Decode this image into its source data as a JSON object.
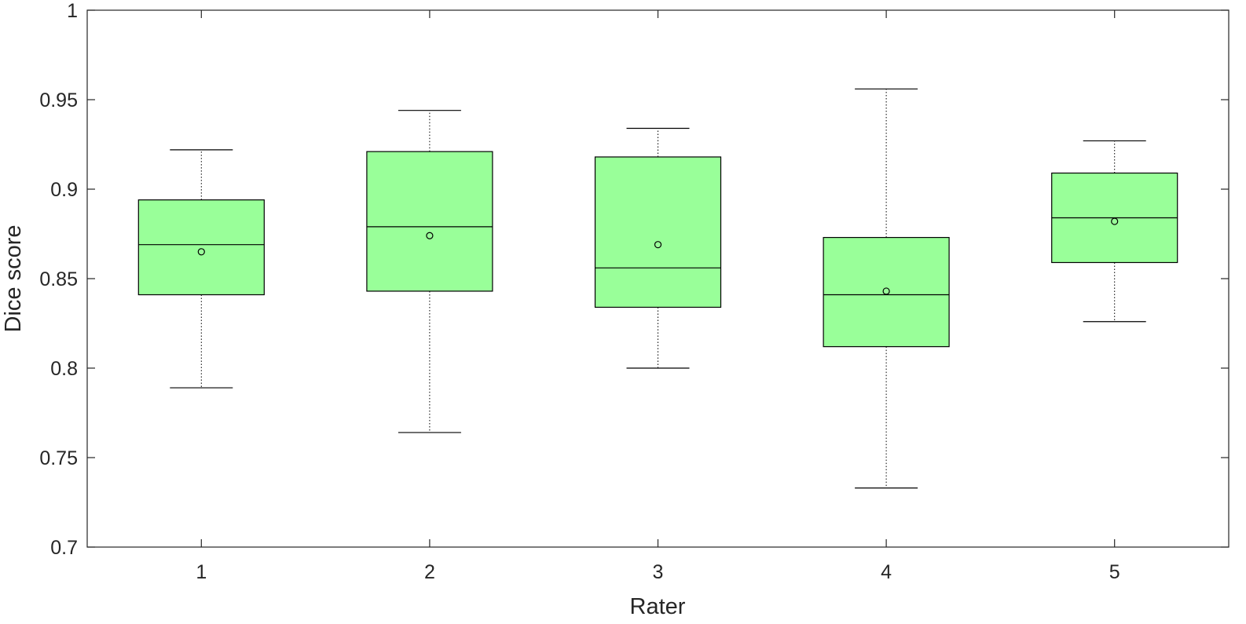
{
  "chart_data": {
    "type": "box",
    "xlabel": "Rater",
    "ylabel": "Dice score",
    "ylim": [
      0.7,
      1
    ],
    "yticks": [
      "0.7",
      "0.75",
      "0.8",
      "0.85",
      "0.9",
      "0.95",
      "1"
    ],
    "categories": [
      "1",
      "2",
      "3",
      "4",
      "5"
    ],
    "box_color": "#99ff99",
    "grid": false,
    "legend": "none",
    "boxes": [
      {
        "category": "1",
        "whisker_low": 0.789,
        "q1": 0.841,
        "median": 0.869,
        "q3": 0.894,
        "whisker_high": 0.922,
        "mean": 0.865
      },
      {
        "category": "2",
        "whisker_low": 0.764,
        "q1": 0.843,
        "median": 0.879,
        "q3": 0.921,
        "whisker_high": 0.944,
        "mean": 0.874
      },
      {
        "category": "3",
        "whisker_low": 0.8,
        "q1": 0.834,
        "median": 0.856,
        "q3": 0.918,
        "whisker_high": 0.934,
        "mean": 0.869
      },
      {
        "category": "4",
        "whisker_low": 0.733,
        "q1": 0.812,
        "median": 0.841,
        "q3": 0.873,
        "whisker_high": 0.956,
        "mean": 0.843
      },
      {
        "category": "5",
        "whisker_low": 0.826,
        "q1": 0.859,
        "median": 0.884,
        "q3": 0.909,
        "whisker_high": 0.927,
        "mean": 0.882
      }
    ]
  }
}
